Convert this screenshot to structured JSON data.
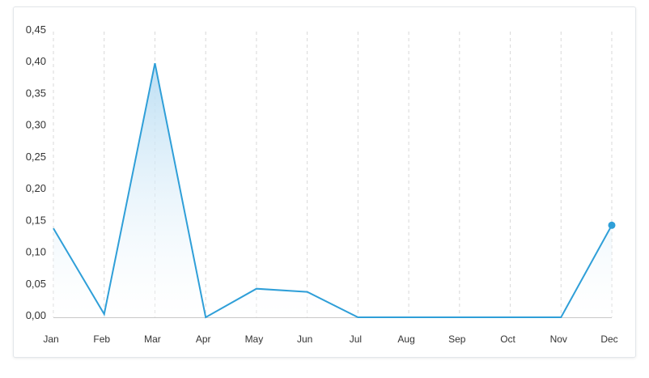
{
  "chart_data": {
    "type": "area",
    "categories": [
      "Jan",
      "Feb",
      "Mar",
      "Apr",
      "May",
      "Jun",
      "Jul",
      "Aug",
      "Sep",
      "Oct",
      "Nov",
      "Dec"
    ],
    "series": [
      {
        "values": [
          0.14,
          0.005,
          0.4,
          0.0,
          0.045,
          0.04,
          0.0,
          0.0,
          0.0,
          0.0,
          0.0,
          0.145
        ]
      }
    ],
    "ylim": [
      0,
      0.45
    ],
    "yticks": [
      "0,00",
      "0,05",
      "0,10",
      "0,15",
      "0,20",
      "0,25",
      "0,30",
      "0,35",
      "0,40",
      "0,45"
    ],
    "grid": "vertical-dashed",
    "colors": {
      "line": "#2f9fd8",
      "fill_top": "#b9ddf3",
      "fill_bottom": "#ffffff",
      "grid": "#d8d8d8",
      "axis": "#c8c8c8"
    },
    "highlighted_point": "Dec"
  }
}
